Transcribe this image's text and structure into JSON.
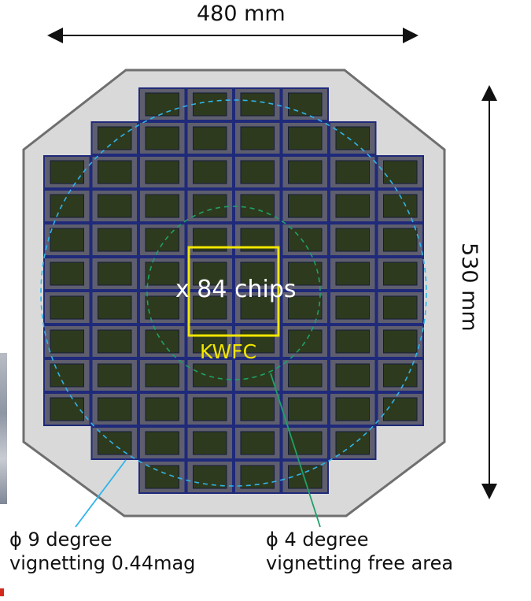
{
  "dimensions": {
    "width_label": "480 mm",
    "height_label": "530 mm"
  },
  "sensor": {
    "chip_count_label": "x 84 chips",
    "kwfc_label": "KWFC",
    "row_chip_counts": [
      4,
      6,
      8,
      8,
      8,
      8,
      8,
      8,
      8,
      8,
      6,
      4
    ]
  },
  "annotations": {
    "nine_degree": {
      "line1": "ϕ 9 degree",
      "line2": "vignetting 0.44mag"
    },
    "four_degree": {
      "line1": "ϕ 4 degree",
      "line2": "vignetting free area"
    }
  },
  "colors": {
    "plate": "#d9d9d9",
    "plate_border": "#6f6f6f",
    "chip_frame": "#5e5e6e",
    "chip_border": "#1f2a7a",
    "chip_active": "#2e3a1d",
    "outer_circle": "#2fb4e9",
    "inner_circle": "#1fa06a",
    "kwfc_box": "#f2e600",
    "leader_9": "#2fb4e9",
    "leader_4": "#1fa06a"
  }
}
